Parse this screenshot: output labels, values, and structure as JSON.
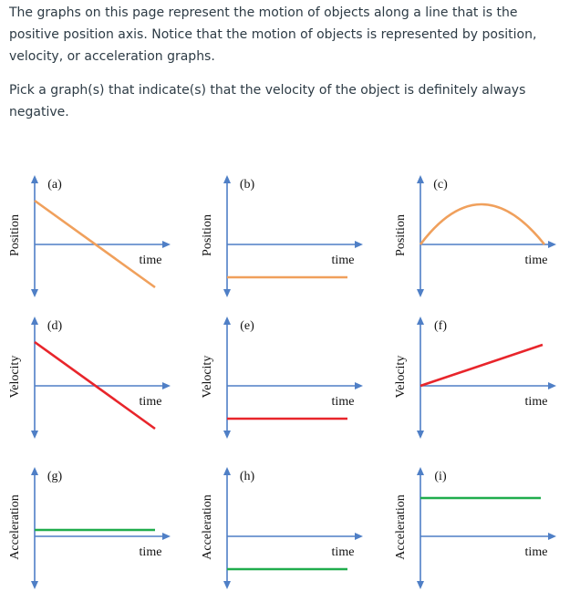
{
  "intro_text": "The graphs on this page represent the motion of objects along a line that is the positive position axis. Notice that the motion of objects is represented by position, velocity, or acceleration graphs.",
  "question_text": "Pick a graph(s) that indicate(s) that the velocity of the object is definitely always negative.",
  "colors": {
    "axis": "#4f7fc6",
    "position_curve": "#f0a05c",
    "velocity_curve": "#e8252b",
    "acceleration_curve": "#20ad4d",
    "text": "#2d3b45"
  },
  "graphs": [
    {
      "id": "a",
      "label": "(a)",
      "ylabel": "Position",
      "xlabel": "time",
      "curve": "decreasing-line-crossing-zero",
      "row": "position"
    },
    {
      "id": "b",
      "label": "(b)",
      "ylabel": "Position",
      "xlabel": "time",
      "curve": "constant-negative",
      "row": "position"
    },
    {
      "id": "c",
      "label": "(c)",
      "ylabel": "Position",
      "xlabel": "time",
      "curve": "arch-above-zero",
      "row": "position"
    },
    {
      "id": "d",
      "label": "(d)",
      "ylabel": "Velocity",
      "xlabel": "time",
      "curve": "decreasing-line-crossing-zero",
      "row": "velocity"
    },
    {
      "id": "e",
      "label": "(e)",
      "ylabel": "Velocity",
      "xlabel": "time",
      "curve": "constant-negative",
      "row": "velocity"
    },
    {
      "id": "f",
      "label": "(f)",
      "ylabel": "Velocity",
      "xlabel": "time",
      "curve": "increasing-from-zero",
      "row": "velocity"
    },
    {
      "id": "g",
      "label": "(g)",
      "ylabel": "Acceleration",
      "xlabel": "time",
      "curve": "constant-slightly-positive",
      "row": "acceleration"
    },
    {
      "id": "h",
      "label": "(h)",
      "ylabel": "Acceleration",
      "xlabel": "time",
      "curve": "constant-negative",
      "row": "acceleration"
    },
    {
      "id": "i",
      "label": "(i)",
      "ylabel": "Acceleration",
      "xlabel": "time",
      "curve": "constant-positive",
      "row": "acceleration"
    }
  ]
}
